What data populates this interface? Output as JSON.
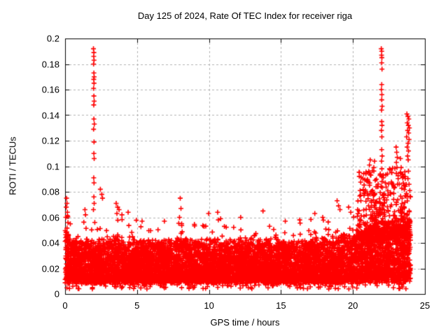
{
  "chart_data": {
    "type": "scatter",
    "title": "Day 125 of 2024, Rate Of TEC Index for receiver riga",
    "xlabel": "GPS time / hours",
    "ylabel": "ROTI / TECUs",
    "xlim": [
      0,
      25
    ],
    "ylim": [
      0,
      0.2
    ],
    "xticks": [
      0,
      5,
      10,
      15,
      20,
      25
    ],
    "xtick_labels": [
      "0",
      "5",
      "10",
      "15",
      "20",
      "25"
    ],
    "yticks": [
      0,
      0.02,
      0.04,
      0.06,
      0.08,
      0.1,
      0.12,
      0.14,
      0.16,
      0.18,
      0.2
    ],
    "ytick_labels": [
      "0",
      "0.02",
      "0.04",
      "0.06",
      "0.08",
      "0.1",
      "0.12",
      "0.14",
      "0.16",
      "0.18",
      "0.2"
    ],
    "grid": true,
    "legend": "none",
    "marker": "plus",
    "colors": {
      "marker": "#ff0000",
      "grid": "#b0b0b0",
      "axis": "#000000",
      "background": "#ffffff",
      "text": "#000000"
    },
    "x_data_range": [
      0,
      24
    ],
    "seed": 125,
    "baseline_band": {
      "n": 8000,
      "x_max": 24,
      "floor": 0.008,
      "noise": 0.0046,
      "amp": 0.0305,
      "pow": 1.7,
      "spike_prob": 0.05,
      "spike_min": 0.004,
      "spike_span": 0.014,
      "low_prob": 0.018,
      "low_base": 0.0038,
      "low_span": 0.005
    },
    "ridge": {
      "n": 400,
      "x_min": 20.3,
      "x_span": 3.7,
      "base": 0.042,
      "amp": 0.052,
      "pow": 2.3,
      "jitter": 0.006
    },
    "envelope": [
      [
        0,
        1.3
      ],
      [
        0.4,
        1.05
      ],
      [
        1.0,
        1.0
      ],
      [
        1.5,
        1.03
      ],
      [
        2.2,
        1.0
      ],
      [
        3.5,
        1.1
      ],
      [
        4.3,
        1.0
      ],
      [
        6,
        0.98
      ],
      [
        8,
        1.06
      ],
      [
        9,
        1.0
      ],
      [
        10.5,
        1.03
      ],
      [
        12,
        1.0
      ],
      [
        14,
        1.0
      ],
      [
        15.5,
        1.0
      ],
      [
        17,
        1.02
      ],
      [
        18.6,
        1.1
      ],
      [
        19.3,
        1.12
      ],
      [
        20,
        1.18
      ],
      [
        20.6,
        1.3
      ],
      [
        21.5,
        1.45
      ],
      [
        22.2,
        1.5
      ],
      [
        23,
        1.45
      ],
      [
        23.6,
        1.55
      ],
      [
        24,
        1.6
      ]
    ],
    "outliers": [
      [
        1.97,
        0.192
      ],
      [
        2.0,
        0.189
      ],
      [
        1.99,
        0.186
      ],
      [
        2.01,
        0.183
      ],
      [
        1.98,
        0.18
      ],
      [
        2.0,
        0.173
      ],
      [
        2.02,
        0.17
      ],
      [
        1.99,
        0.168
      ],
      [
        2.01,
        0.165
      ],
      [
        1.98,
        0.161
      ],
      [
        2.0,
        0.155
      ],
      [
        2.02,
        0.151
      ],
      [
        1.99,
        0.148
      ],
      [
        2.0,
        0.137
      ],
      [
        2.03,
        0.133
      ],
      [
        1.98,
        0.129
      ],
      [
        2.01,
        0.119
      ],
      [
        2.0,
        0.11
      ],
      [
        2.02,
        0.106
      ],
      [
        1.99,
        0.091
      ],
      [
        2.01,
        0.087
      ],
      [
        2.0,
        0.076
      ],
      [
        2.02,
        0.071
      ],
      [
        1.97,
        0.066
      ],
      [
        21.97,
        0.192
      ],
      [
        22.0,
        0.19
      ],
      [
        21.99,
        0.187
      ],
      [
        22.01,
        0.185
      ],
      [
        22.0,
        0.181
      ],
      [
        22.02,
        0.176
      ],
      [
        22.0,
        0.164
      ],
      [
        21.98,
        0.16
      ],
      [
        22.01,
        0.156
      ],
      [
        22.0,
        0.152
      ],
      [
        22.03,
        0.147
      ],
      [
        21.99,
        0.144
      ],
      [
        22.0,
        0.135
      ],
      [
        22.02,
        0.132
      ],
      [
        21.98,
        0.128
      ],
      [
        22.01,
        0.123
      ],
      [
        22.0,
        0.113
      ],
      [
        22.03,
        0.108
      ],
      [
        21.99,
        0.104
      ],
      [
        22.01,
        0.098
      ],
      [
        22.0,
        0.092
      ],
      [
        22.02,
        0.088
      ],
      [
        23.0,
        0.115
      ],
      [
        23.04,
        0.111
      ],
      [
        23.08,
        0.107
      ],
      [
        23.02,
        0.103
      ],
      [
        23.06,
        0.099
      ],
      [
        23.75,
        0.141
      ],
      [
        23.82,
        0.139
      ],
      [
        23.88,
        0.137
      ],
      [
        23.78,
        0.134
      ],
      [
        23.85,
        0.132
      ],
      [
        23.92,
        0.13
      ],
      [
        23.8,
        0.128
      ],
      [
        23.87,
        0.126
      ],
      [
        23.73,
        0.123
      ],
      [
        23.9,
        0.121
      ],
      [
        23.83,
        0.118
      ],
      [
        23.77,
        0.115
      ],
      [
        23.86,
        0.112
      ],
      [
        23.8,
        0.108
      ],
      [
        23.84,
        0.105
      ],
      [
        20.32,
        0.066
      ],
      [
        20.5,
        0.081
      ],
      [
        20.55,
        0.073
      ],
      [
        20.9,
        0.08
      ],
      [
        21.05,
        0.088
      ],
      [
        21.1,
        0.096
      ],
      [
        21.15,
        0.101
      ],
      [
        21.2,
        0.105
      ],
      [
        21.25,
        0.093
      ],
      [
        21.45,
        0.099
      ],
      [
        21.5,
        0.104
      ],
      [
        21.55,
        0.089
      ],
      [
        21.6,
        0.084
      ],
      [
        21.75,
        0.086
      ],
      [
        21.9,
        0.094
      ],
      [
        22.1,
        0.091
      ],
      [
        22.25,
        0.087
      ],
      [
        22.4,
        0.094
      ],
      [
        22.55,
        0.098
      ],
      [
        22.7,
        0.095
      ],
      [
        22.85,
        0.083
      ],
      [
        23.3,
        0.106
      ],
      [
        23.35,
        0.099
      ],
      [
        23.45,
        0.091
      ],
      [
        23.55,
        0.085
      ],
      [
        23.95,
        0.081
      ],
      [
        24.0,
        0.076
      ],
      [
        0.1,
        0.075
      ],
      [
        0.13,
        0.071
      ],
      [
        0.08,
        0.068
      ],
      [
        0.16,
        0.064
      ],
      [
        0.05,
        0.06
      ],
      [
        1.38,
        0.066
      ],
      [
        1.42,
        0.062
      ],
      [
        2.45,
        0.082
      ],
      [
        2.55,
        0.078
      ],
      [
        2.6,
        0.075
      ],
      [
        3.55,
        0.071
      ],
      [
        3.65,
        0.068
      ],
      [
        3.75,
        0.066
      ],
      [
        3.6,
        0.063
      ],
      [
        3.95,
        0.062
      ],
      [
        4.38,
        0.064
      ],
      [
        5.35,
        0.057
      ],
      [
        6.9,
        0.057
      ],
      [
        7.95,
        0.06
      ],
      [
        8.0,
        0.075
      ],
      [
        8.05,
        0.067
      ],
      [
        8.1,
        0.055
      ],
      [
        9.97,
        0.063
      ],
      [
        10.6,
        0.064
      ],
      [
        10.65,
        0.058
      ],
      [
        12.2,
        0.06
      ],
      [
        13.75,
        0.065
      ],
      [
        15.3,
        0.057
      ],
      [
        16.3,
        0.058
      ],
      [
        17.35,
        0.063
      ],
      [
        17.9,
        0.06
      ],
      [
        18.9,
        0.073
      ],
      [
        19.0,
        0.069
      ],
      [
        19.1,
        0.066
      ],
      [
        19.7,
        0.068
      ],
      [
        19.85,
        0.064
      ]
    ]
  }
}
